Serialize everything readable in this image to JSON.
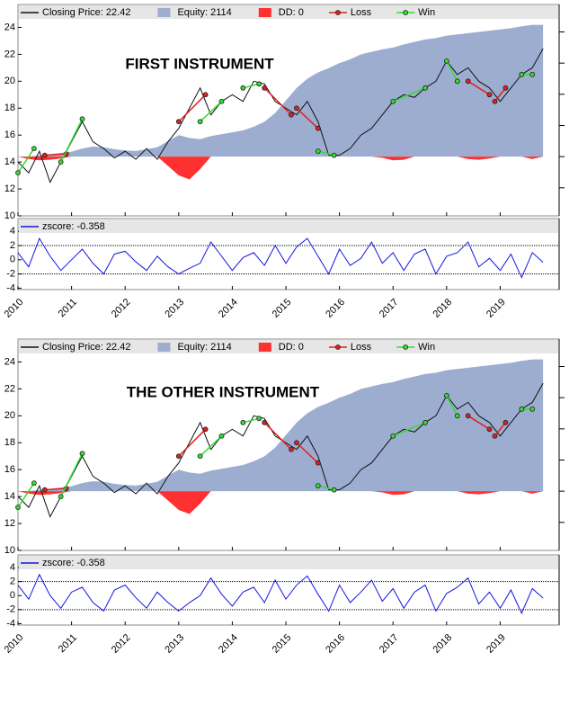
{
  "chart_data": [
    {
      "type": "line",
      "title": "FIRST INSTRUMENT",
      "xlim": [
        2010,
        2020.1
      ],
      "xticks": [
        2010,
        2011,
        2012,
        2013,
        2014,
        2015,
        2016,
        2017,
        2018,
        2019
      ],
      "show_xtick_labels": false,
      "ylim": [
        10,
        25.7
      ],
      "yticks": [
        10,
        12,
        14,
        16,
        18,
        20,
        22,
        24
      ],
      "y2lim": [
        -950,
        2440
      ],
      "y2ticks": [
        -500,
        0,
        500,
        1000,
        1500,
        2000
      ],
      "x": [
        2010.0,
        2010.2,
        2010.4,
        2010.6,
        2010.8,
        2011.0,
        2011.2,
        2011.4,
        2011.6,
        2011.8,
        2012.0,
        2012.2,
        2012.4,
        2012.6,
        2012.8,
        2013.0,
        2013.2,
        2013.4,
        2013.6,
        2013.8,
        2014.0,
        2014.2,
        2014.4,
        2014.6,
        2014.8,
        2015.0,
        2015.2,
        2015.4,
        2015.6,
        2015.8,
        2016.0,
        2016.2,
        2016.4,
        2016.6,
        2016.8,
        2017.0,
        2017.2,
        2017.4,
        2017.6,
        2017.8,
        2018.0,
        2018.2,
        2018.4,
        2018.6,
        2018.8,
        2019.0,
        2019.2,
        2019.4,
        2019.6,
        2019.8
      ],
      "series": [
        {
          "name": "Equity: 2114",
          "color": "#9dadd0",
          "style": "area",
          "axis": "y2",
          "values": [
            0,
            0,
            20,
            40,
            60,
            80,
            130,
            160,
            150,
            120,
            100,
            90,
            120,
            150,
            250,
            345,
            300,
            280,
            330,
            360,
            390,
            420,
            480,
            560,
            700,
            900,
            1100,
            1250,
            1350,
            1420,
            1500,
            1560,
            1640,
            1680,
            1720,
            1750,
            1800,
            1840,
            1880,
            1900,
            1940,
            1960,
            1980,
            2000,
            2020,
            2040,
            2060,
            2090,
            2114,
            2114
          ]
        },
        {
          "name": "DD: 0",
          "color": "#ff3030",
          "style": "area",
          "axis": "y2",
          "values": [
            0,
            -40,
            -60,
            -50,
            -30,
            0,
            0,
            0,
            0,
            0,
            0,
            0,
            0,
            0,
            -150,
            -300,
            -365,
            -200,
            0,
            0,
            0,
            0,
            0,
            0,
            0,
            0,
            0,
            0,
            0,
            0,
            0,
            0,
            0,
            0,
            -20,
            -60,
            -50,
            0,
            0,
            0,
            0,
            0,
            -40,
            -50,
            -30,
            0,
            0,
            0,
            -40,
            0
          ]
        },
        {
          "name": "Closing Price: 22.42",
          "color": "#111111",
          "style": "line",
          "values": [
            14,
            13.2,
            14.8,
            12.5,
            14,
            15.5,
            17,
            15.5,
            15,
            14.3,
            14.8,
            14.2,
            15,
            14.2,
            15.5,
            16.5,
            18,
            19.5,
            17.5,
            18.5,
            19,
            18.5,
            20,
            19.8,
            18.5,
            18,
            17.5,
            18.5,
            17,
            14.5,
            14.5,
            15,
            16,
            16.5,
            17.5,
            18.5,
            19,
            18.8,
            19.5,
            20,
            21.5,
            20.5,
            21,
            20,
            19.5,
            18.5,
            19.5,
            20.5,
            21,
            22.42
          ]
        },
        {
          "name": "Loss",
          "color": "#e02020",
          "style": "trades",
          "x": [
            2010.5,
            2010.9,
            null,
            2013.0,
            2013.5,
            null,
            2014.6,
            2015.1,
            null,
            2015.2,
            2015.6,
            null,
            2018.4,
            2018.8,
            null,
            2018.9,
            2019.1
          ],
          "values": [
            14.5,
            14.6,
            null,
            17,
            19,
            null,
            19.5,
            17.5,
            null,
            18,
            16.5,
            null,
            20,
            19,
            null,
            18.5,
            19.5
          ]
        },
        {
          "name": "Win",
          "color": "#33dd33",
          "style": "trades",
          "x": [
            2010.0,
            2010.3,
            null,
            2010.8,
            2011.2,
            null,
            2013.4,
            2013.8,
            null,
            2014.2,
            2014.5,
            null,
            2015.6,
            2015.9,
            null,
            2017.0,
            2017.6,
            null,
            2018.0,
            2018.2,
            null,
            2019.4,
            2019.6
          ],
          "values": [
            13.2,
            15,
            null,
            14,
            17.2,
            null,
            17,
            18.5,
            null,
            19.5,
            19.8,
            null,
            14.8,
            14.5,
            null,
            18.5,
            19.5,
            null,
            21.5,
            20,
            null,
            20.5,
            20.5
          ]
        }
      ]
    },
    {
      "type": "line",
      "xlim": [
        2010,
        2020.1
      ],
      "xticks": [
        2010,
        2011,
        2012,
        2013,
        2014,
        2015,
        2016,
        2017,
        2018,
        2019
      ],
      "show_xtick_labels": true,
      "ylim": [
        -4.2,
        5.8
      ],
      "yticks": [
        -4,
        -2,
        0,
        2,
        4
      ],
      "hlines": [
        2,
        -2
      ],
      "x": [
        2010.0,
        2010.2,
        2010.4,
        2010.6,
        2010.8,
        2011.0,
        2011.2,
        2011.4,
        2011.6,
        2011.8,
        2012.0,
        2012.2,
        2012.4,
        2012.6,
        2012.8,
        2013.0,
        2013.2,
        2013.4,
        2013.6,
        2013.8,
        2014.0,
        2014.2,
        2014.4,
        2014.6,
        2014.8,
        2015.0,
        2015.2,
        2015.4,
        2015.6,
        2015.8,
        2016.0,
        2016.2,
        2016.4,
        2016.6,
        2016.8,
        2017.0,
        2017.2,
        2017.4,
        2017.6,
        2017.8,
        2018.0,
        2018.2,
        2018.4,
        2018.6,
        2018.8,
        2019.0,
        2019.2,
        2019.4,
        2019.6,
        2019.8
      ],
      "series": [
        {
          "name": "zscore: -0.358",
          "color": "#1515e0",
          "style": "line",
          "values": [
            1,
            -1,
            3,
            0.5,
            -1.5,
            0,
            1.5,
            -0.5,
            -2,
            0.8,
            1.2,
            -0.3,
            -1.5,
            0.5,
            -1,
            -2,
            -1.2,
            -0.5,
            2.5,
            0.5,
            -1.5,
            0.3,
            1,
            -0.8,
            2,
            -0.5,
            1.8,
            3,
            0.5,
            -2,
            1.5,
            -0.8,
            0.2,
            2.5,
            -0.5,
            1,
            -1.5,
            0.8,
            1.5,
            -2,
            0.5,
            1,
            2.5,
            -1,
            0.2,
            -1.5,
            0.8,
            -2.5,
            1,
            -0.358
          ]
        }
      ]
    },
    {
      "type": "line",
      "title": "THE OTHER INSTRUMENT",
      "xlim": [
        2010,
        2020.1
      ],
      "xticks": [
        2010,
        2011,
        2012,
        2013,
        2014,
        2015,
        2016,
        2017,
        2018,
        2019
      ],
      "show_xtick_labels": false,
      "ylim": [
        10,
        25.7
      ],
      "yticks": [
        10,
        12,
        14,
        16,
        18,
        20,
        22,
        24
      ],
      "y2lim": [
        -950,
        2440
      ],
      "y2ticks": [
        -500,
        0,
        500,
        1000,
        1500,
        2000
      ],
      "x": [
        2010.0,
        2010.2,
        2010.4,
        2010.6,
        2010.8,
        2011.0,
        2011.2,
        2011.4,
        2011.6,
        2011.8,
        2012.0,
        2012.2,
        2012.4,
        2012.6,
        2012.8,
        2013.0,
        2013.2,
        2013.4,
        2013.6,
        2013.8,
        2014.0,
        2014.2,
        2014.4,
        2014.6,
        2014.8,
        2015.0,
        2015.2,
        2015.4,
        2015.6,
        2015.8,
        2016.0,
        2016.2,
        2016.4,
        2016.6,
        2016.8,
        2017.0,
        2017.2,
        2017.4,
        2017.6,
        2017.8,
        2018.0,
        2018.2,
        2018.4,
        2018.6,
        2018.8,
        2019.0,
        2019.2,
        2019.4,
        2019.6,
        2019.8
      ],
      "series": [
        {
          "name": "Equity: 2114",
          "color": "#9dadd0",
          "style": "area",
          "axis": "y2",
          "values": [
            0,
            0,
            20,
            40,
            60,
            80,
            130,
            160,
            150,
            120,
            100,
            90,
            120,
            150,
            250,
            345,
            300,
            280,
            330,
            360,
            390,
            420,
            480,
            560,
            700,
            900,
            1100,
            1250,
            1350,
            1420,
            1500,
            1560,
            1640,
            1680,
            1720,
            1750,
            1800,
            1840,
            1880,
            1900,
            1940,
            1960,
            1980,
            2000,
            2020,
            2040,
            2060,
            2090,
            2114,
            2114
          ]
        },
        {
          "name": "DD: 0",
          "color": "#ff3030",
          "style": "area",
          "axis": "y2",
          "values": [
            0,
            -40,
            -60,
            -50,
            -30,
            0,
            0,
            0,
            0,
            0,
            0,
            0,
            0,
            0,
            -150,
            -300,
            -365,
            -200,
            0,
            0,
            0,
            0,
            0,
            0,
            0,
            0,
            0,
            0,
            0,
            0,
            0,
            0,
            0,
            0,
            -20,
            -60,
            -50,
            0,
            0,
            0,
            0,
            0,
            -40,
            -50,
            -30,
            0,
            0,
            0,
            -40,
            0
          ]
        },
        {
          "name": "Closing Price: 22.42",
          "color": "#111111",
          "style": "line",
          "values": [
            14,
            13.2,
            14.8,
            12.5,
            14,
            15.5,
            17,
            15.5,
            15,
            14.3,
            14.8,
            14.2,
            15,
            14.2,
            15.5,
            16.5,
            18,
            19.5,
            17.5,
            18.5,
            19,
            18.5,
            20,
            19.8,
            18.5,
            18,
            17.5,
            18.5,
            17,
            14.5,
            14.5,
            15,
            16,
            16.5,
            17.5,
            18.5,
            19,
            18.8,
            19.5,
            20,
            21.5,
            20.5,
            21,
            20,
            19.5,
            18.5,
            19.5,
            20.5,
            21,
            22.42
          ]
        },
        {
          "name": "Loss",
          "color": "#e02020",
          "style": "trades",
          "x": [
            2010.5,
            2010.9,
            null,
            2013.0,
            2013.5,
            null,
            2014.6,
            2015.1,
            null,
            2015.2,
            2015.6,
            null,
            2018.4,
            2018.8,
            null,
            2018.9,
            2019.1
          ],
          "values": [
            14.5,
            14.6,
            null,
            17,
            19,
            null,
            19.5,
            17.5,
            null,
            18,
            16.5,
            null,
            20,
            19,
            null,
            18.5,
            19.5
          ]
        },
        {
          "name": "Win",
          "color": "#33dd33",
          "style": "trades",
          "x": [
            2010.0,
            2010.3,
            null,
            2010.8,
            2011.2,
            null,
            2013.4,
            2013.8,
            null,
            2014.2,
            2014.5,
            null,
            2015.6,
            2015.9,
            null,
            2017.0,
            2017.6,
            null,
            2018.0,
            2018.2,
            null,
            2019.4,
            2019.6
          ],
          "values": [
            13.2,
            15,
            null,
            14,
            17.2,
            null,
            17,
            18.5,
            null,
            19.5,
            19.8,
            null,
            14.8,
            14.5,
            null,
            18.5,
            19.5,
            null,
            21.5,
            20,
            null,
            20.5,
            20.5
          ]
        }
      ]
    },
    {
      "type": "line",
      "xlim": [
        2010,
        2020.1
      ],
      "xticks": [
        2010,
        2011,
        2012,
        2013,
        2014,
        2015,
        2016,
        2017,
        2018,
        2019
      ],
      "show_xtick_labels": true,
      "ylim": [
        -4.2,
        5.8
      ],
      "yticks": [
        -4,
        -2,
        0,
        2,
        4
      ],
      "hlines": [
        2,
        -2
      ],
      "x": [
        2010.0,
        2010.2,
        2010.4,
        2010.6,
        2010.8,
        2011.0,
        2011.2,
        2011.4,
        2011.6,
        2011.8,
        2012.0,
        2012.2,
        2012.4,
        2012.6,
        2012.8,
        2013.0,
        2013.2,
        2013.4,
        2013.6,
        2013.8,
        2014.0,
        2014.2,
        2014.4,
        2014.6,
        2014.8,
        2015.0,
        2015.2,
        2015.4,
        2015.6,
        2015.8,
        2016.0,
        2016.2,
        2016.4,
        2016.6,
        2016.8,
        2017.0,
        2017.2,
        2017.4,
        2017.6,
        2017.8,
        2018.0,
        2018.2,
        2018.4,
        2018.6,
        2018.8,
        2019.0,
        2019.2,
        2019.4,
        2019.6,
        2019.8
      ],
      "series": [
        {
          "name": "zscore: -0.358",
          "color": "#1515e0",
          "style": "line",
          "values": [
            1.5,
            -0.5,
            3,
            0,
            -1.8,
            0.5,
            1.2,
            -1,
            -2.2,
            0.8,
            1.5,
            -0.3,
            -1.8,
            0.5,
            -1,
            -2.2,
            -1,
            0,
            2.5,
            0.2,
            -1.5,
            0.5,
            1.2,
            -1,
            2.2,
            -0.5,
            1.5,
            2.8,
            0.2,
            -2.2,
            1.5,
            -1,
            0.5,
            2.2,
            -0.8,
            1,
            -1.8,
            0.5,
            1.5,
            -2.2,
            0.3,
            1.2,
            2.5,
            -1.2,
            0.5,
            -1.8,
            0.8,
            -2.5,
            1,
            -0.358
          ]
        }
      ]
    }
  ]
}
